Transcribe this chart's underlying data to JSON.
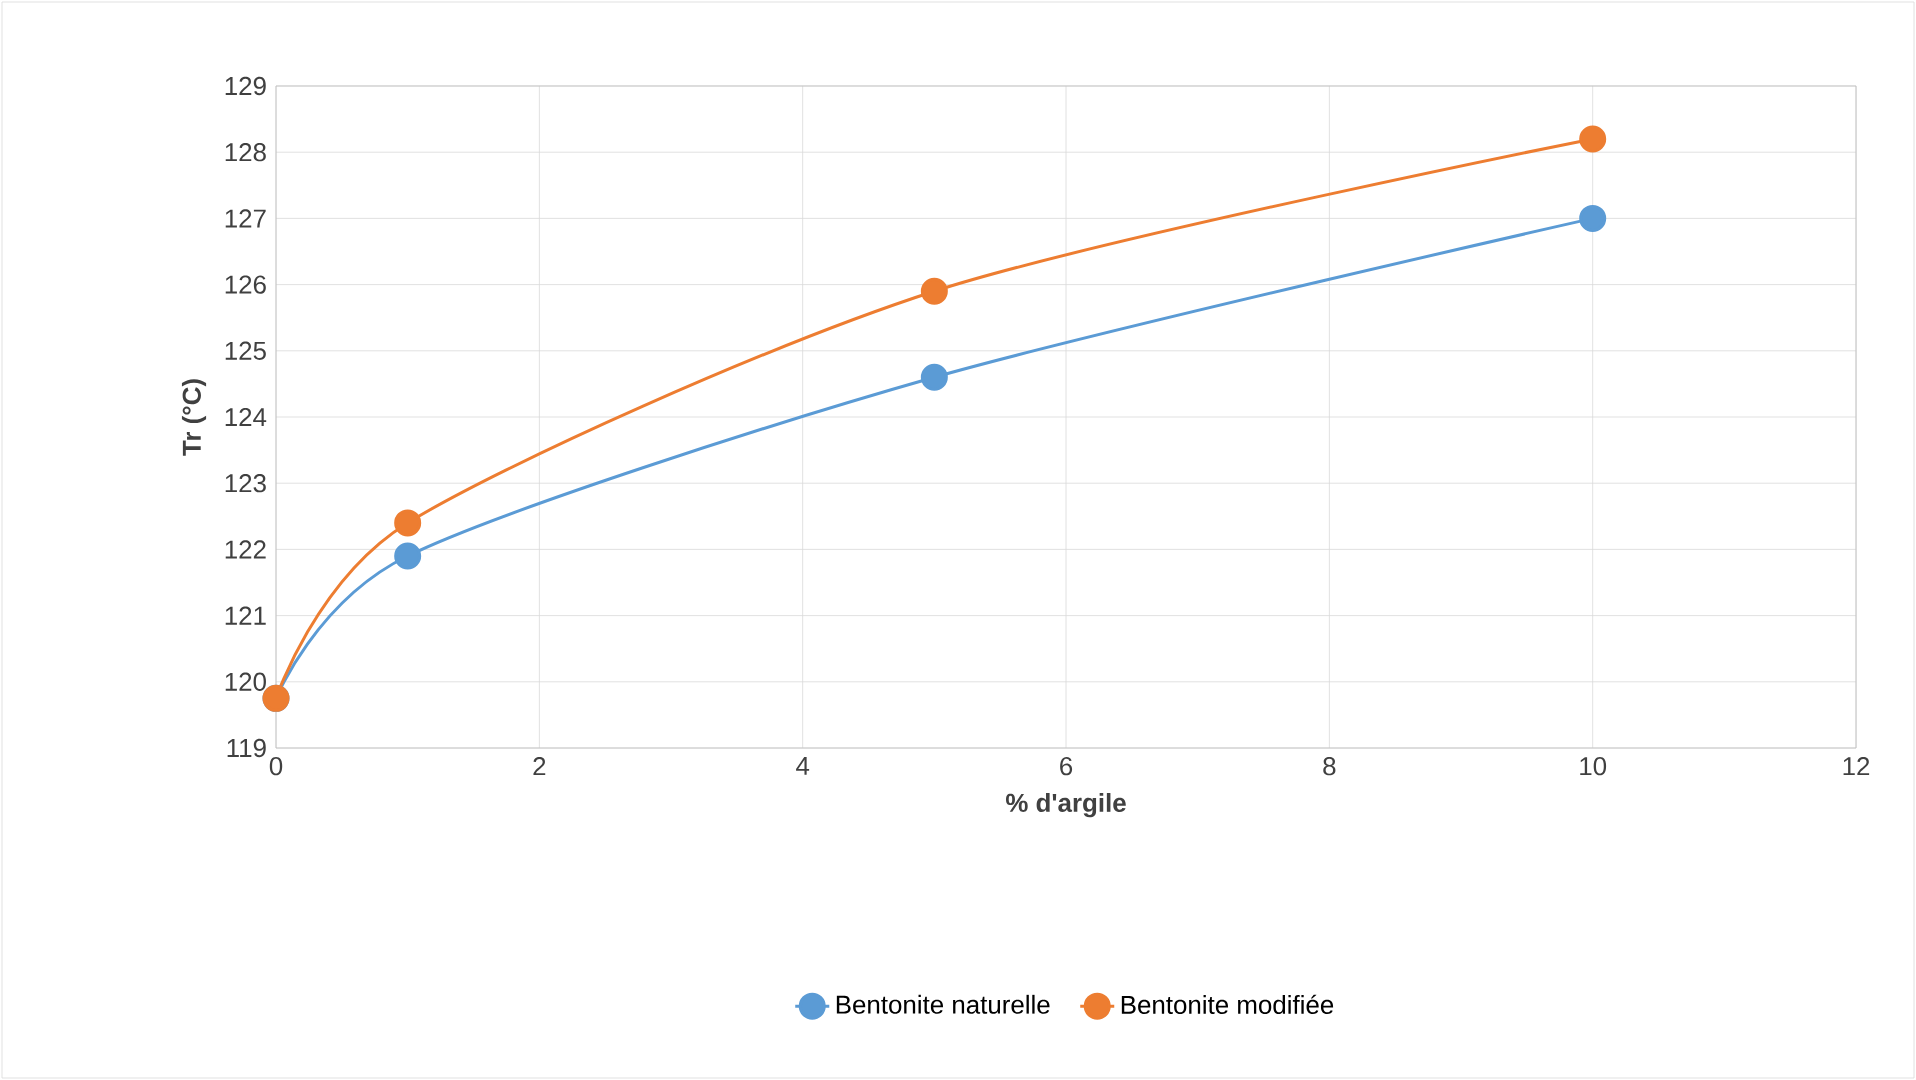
{
  "chart_data": {
    "type": "line",
    "xlabel": "% d'argile",
    "ylabel": "Tr (°C)",
    "x": [
      0,
      1,
      5,
      10
    ],
    "series": [
      {
        "name": "Bentonite naturelle",
        "color": "#5b9bd5",
        "values": [
          119.75,
          121.9,
          124.6,
          127.0
        ]
      },
      {
        "name": "Bentonite modifiée",
        "color": "#ed7d31",
        "values": [
          119.75,
          122.4,
          125.9,
          128.2
        ]
      }
    ],
    "xlim": [
      0,
      12
    ],
    "ylim": [
      119,
      129
    ],
    "xticks": [
      0,
      2,
      4,
      6,
      8,
      10,
      12
    ],
    "yticks": [
      119,
      120,
      121,
      122,
      123,
      124,
      125,
      126,
      127,
      128,
      129
    ],
    "grid": true,
    "legend": "bottom",
    "marker": "circle"
  }
}
